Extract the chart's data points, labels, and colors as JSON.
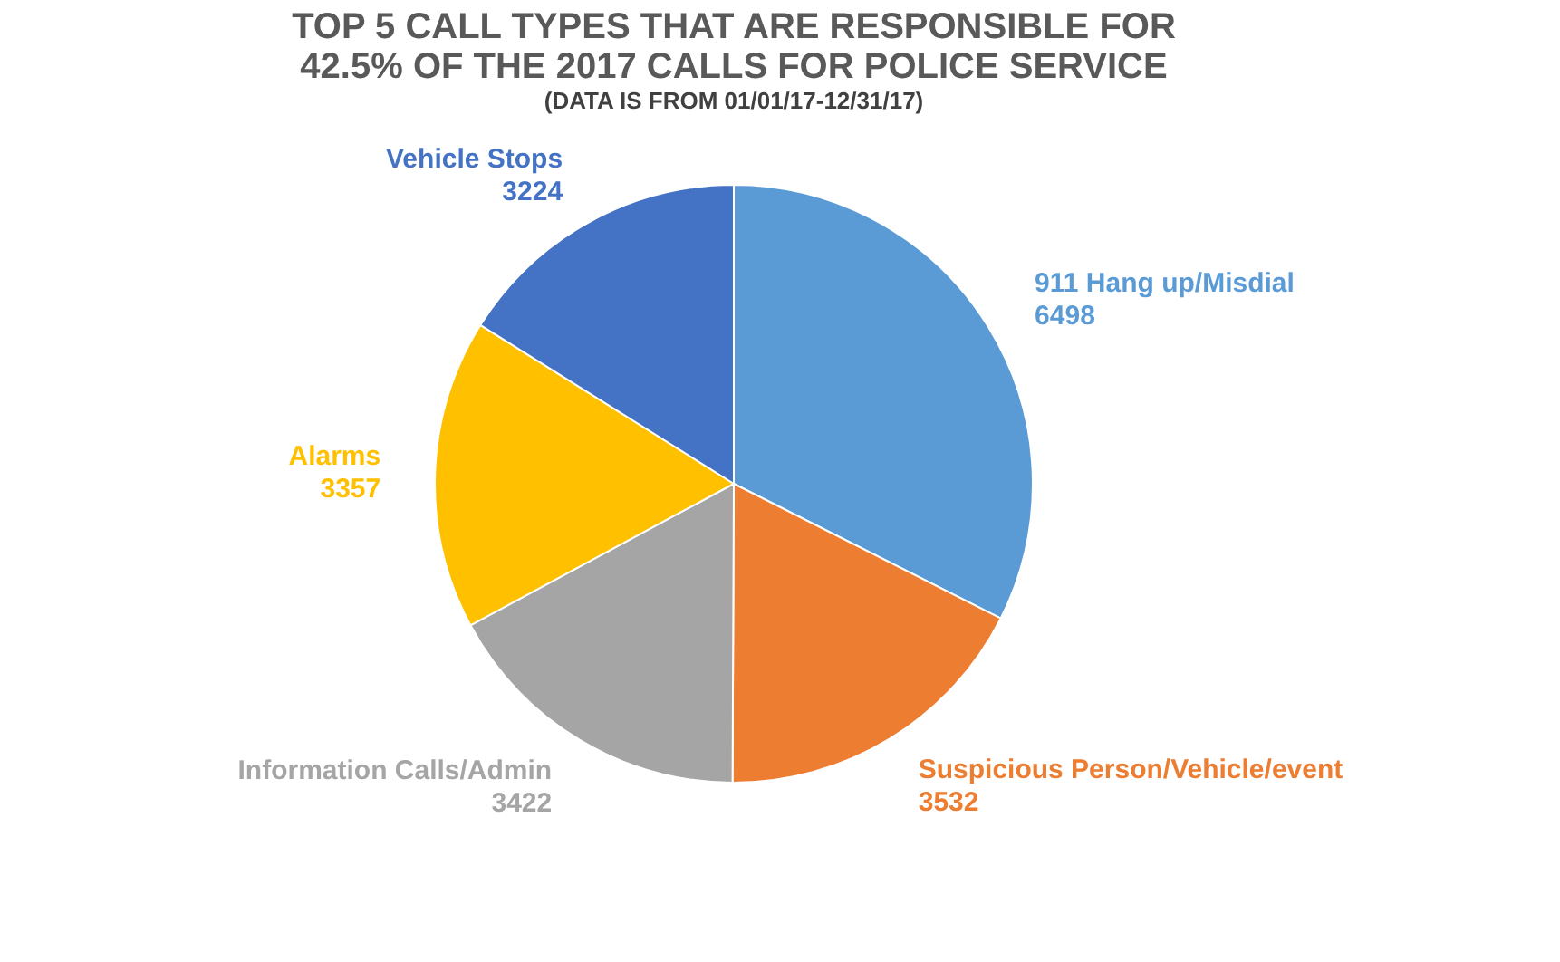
{
  "chart_data": {
    "type": "pie",
    "title": "TOP 5 CALL TYPES THAT ARE RESPONSIBLE FOR 42.5% OF THE 2017 CALLS FOR POLICE SERVICE",
    "subtitle": "(DATA IS FROM 01/01/17-12/31/17)",
    "categories": [
      "911 Hang up/Misdial",
      "Suspicious Person/Vehicle/event",
      "Information Calls/Admin",
      "Alarms",
      "Vehicle Stops"
    ],
    "values": [
      6498,
      3532,
      3422,
      3357,
      3224
    ],
    "colors": [
      "#5b9bd5",
      "#ed7d31",
      "#a5a5a5",
      "#ffc000",
      "#4472c4"
    ],
    "data_labels": true,
    "legend": false
  }
}
